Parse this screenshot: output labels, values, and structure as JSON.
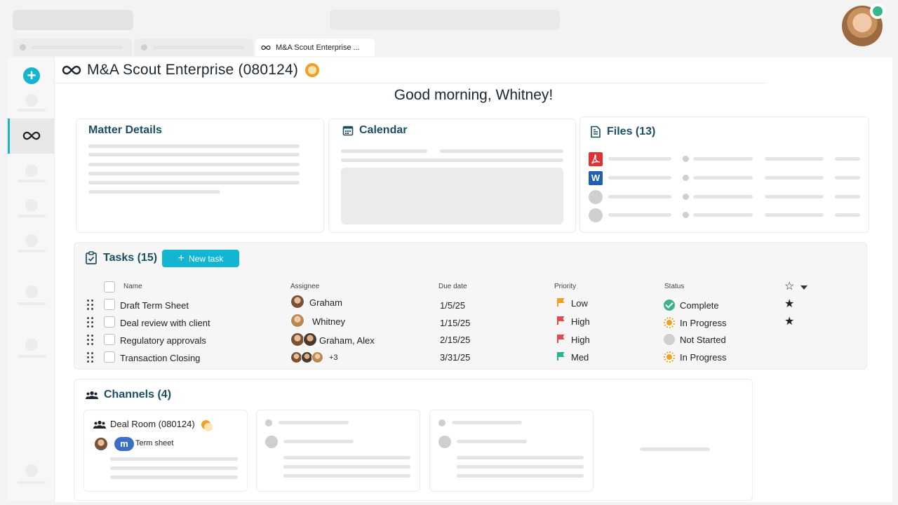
{
  "tabs": {
    "active_label": "M&A Scout Enterprise ..."
  },
  "header": {
    "title": "M&A Scout Enterprise (080124)"
  },
  "greeting": "Good morning, Whitney!",
  "matter_details": {
    "title": "Matter Details"
  },
  "calendar": {
    "title": "Calendar"
  },
  "files": {
    "title": "Files (13)",
    "icons": [
      "pdf-icon",
      "word-icon"
    ],
    "word_letter": "W"
  },
  "tasks": {
    "title": "Tasks (15)",
    "new_task_label": "New task",
    "columns": {
      "name": "Name",
      "assignee": "Assignee",
      "due": "Due date",
      "priority": "Priority",
      "status": "Status"
    },
    "rows": [
      {
        "name": "Draft Term Sheet",
        "assignee": "Graham",
        "due": "1/5/25",
        "priority": "Low",
        "priority_color": "#f0a023",
        "status": "Complete",
        "starred": true
      },
      {
        "name": "Deal review with client",
        "assignee": "Whitney",
        "due": "1/15/25",
        "priority": "High",
        "priority_color": "#e5484d",
        "status": "In Progress",
        "starred": true
      },
      {
        "name": "Regulatory approvals",
        "assignee": "Graham, Alex",
        "due": "2/15/25",
        "priority": "High",
        "priority_color": "#e5484d",
        "status": "Not Started",
        "starred": false
      },
      {
        "name": "Transaction Closing",
        "assignee": "+3",
        "due": "3/31/25",
        "priority": "Med",
        "priority_color": "#2bb38f",
        "status": "In Progress",
        "starred": false
      }
    ]
  },
  "channels": {
    "title": "Channels (4)",
    "first": {
      "name": "Deal Room (080124)",
      "last_message": "Term sheet",
      "badge_letter": "m"
    }
  },
  "colors": {
    "accent": "#13b6d1",
    "heading": "#1b4e63",
    "complete": "#3ab38b",
    "progress": "#f0a023"
  }
}
